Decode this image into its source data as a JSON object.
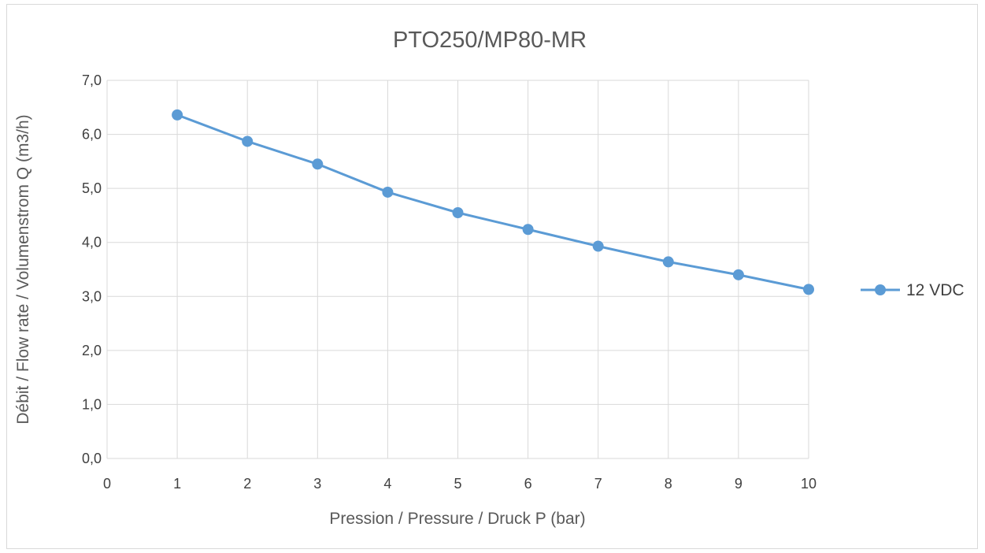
{
  "chart_data": {
    "type": "line",
    "title": "PTO250/MP80-MR",
    "xlabel": "Pression / Pressure / Druck P (bar)",
    "ylabel": "Débit / Flow rate / Volumenstrom Q (m3/h)",
    "xlim": [
      0,
      10
    ],
    "ylim": [
      0,
      7
    ],
    "x_ticks": [
      "0",
      "1",
      "2",
      "3",
      "4",
      "5",
      "6",
      "7",
      "8",
      "9",
      "10"
    ],
    "y_ticks": [
      "0,0",
      "1,0",
      "2,0",
      "3,0",
      "4,0",
      "5,0",
      "6,0",
      "7,0"
    ],
    "grid": true,
    "legend_position": "right",
    "series": [
      {
        "name": "12 VDC",
        "color": "#5b9bd5",
        "x": [
          1,
          2,
          3,
          4,
          5,
          6,
          7,
          8,
          9,
          10
        ],
        "y": [
          6.36,
          5.87,
          5.45,
          4.93,
          4.55,
          4.24,
          3.93,
          3.64,
          3.4,
          3.13
        ]
      }
    ]
  }
}
